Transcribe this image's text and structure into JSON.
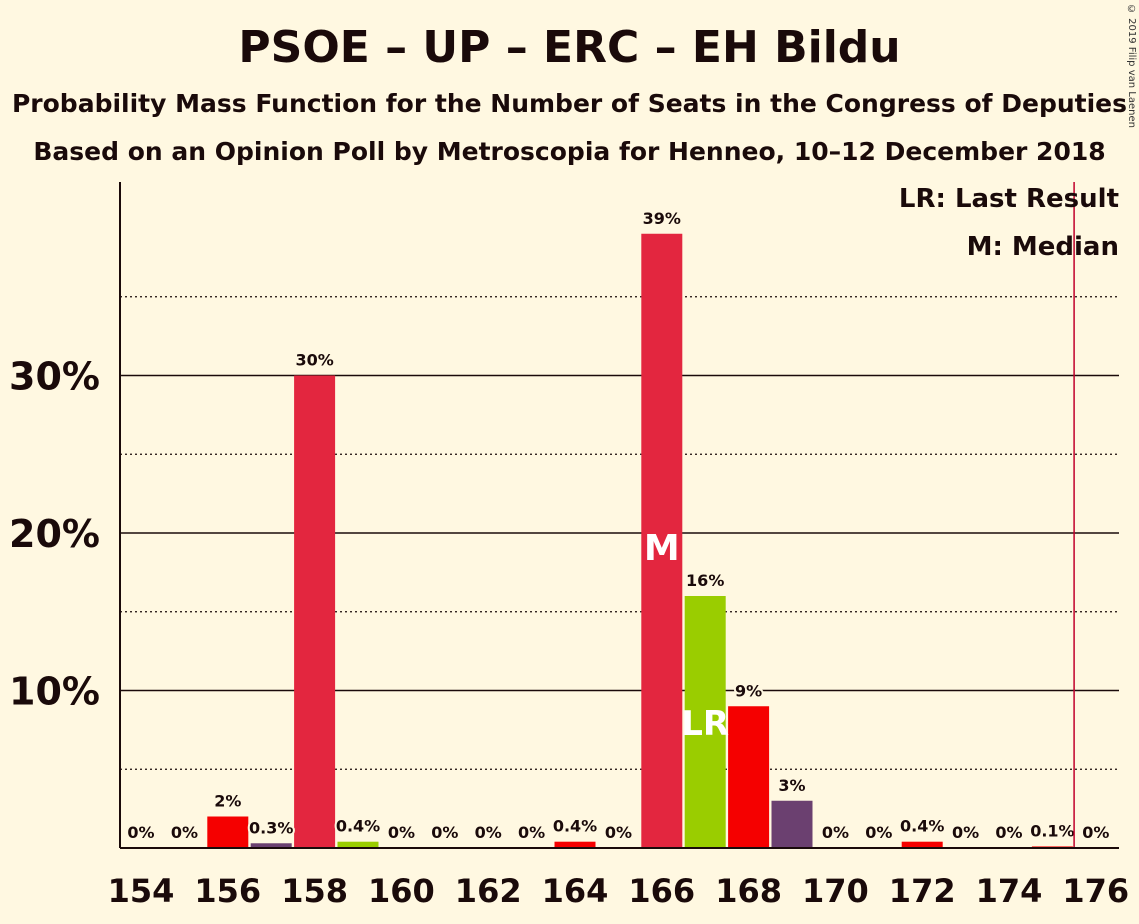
{
  "chart_data": {
    "type": "bar",
    "title": "PSOE – UP – ERC – EH Bildu",
    "subtitle": "Probability Mass Function for the Number of Seats in the Congress of Deputies",
    "subtitle2": "Based on an Opinion Poll by Metroscopia for Henneo, 10–12 December 2018",
    "copyright": "© 2019 Filip van Laenen",
    "legend": {
      "last_result": "LR: Last Result",
      "median": "M: Median",
      "placement": "top-right"
    },
    "x": [
      154,
      155,
      156,
      157,
      158,
      159,
      160,
      161,
      162,
      163,
      164,
      165,
      166,
      167,
      168,
      169,
      170,
      171,
      172,
      173,
      174,
      175,
      176
    ],
    "x_tick_labels": [
      "154",
      "156",
      "158",
      "160",
      "162",
      "164",
      "166",
      "168",
      "170",
      "172",
      "174",
      "176"
    ],
    "values": [
      0,
      0,
      2,
      0.3,
      30,
      0.4,
      0,
      0,
      0,
      0,
      0.4,
      0,
      39,
      16,
      9,
      3,
      0,
      0,
      0.4,
      0,
      0,
      0.1,
      0
    ],
    "labels": [
      "0%",
      "0%",
      "2%",
      "0.3%",
      "30%",
      "0.4%",
      "0%",
      "0%",
      "0%",
      "0%",
      "0.4%",
      "0%",
      "39%",
      "16%",
      "9%",
      "3%",
      "0%",
      "0%",
      "0.4%",
      "0%",
      "0%",
      "0.1%",
      "0%"
    ],
    "y_tick_labels": [
      "10%",
      "20%",
      "30%"
    ],
    "y_ticks": [
      10,
      20,
      30
    ],
    "y_minor_ticks": [
      5,
      15,
      25,
      35
    ],
    "ylim": [
      0,
      42
    ],
    "majority_line_x": 175.5,
    "median_x": 166,
    "median_mark": "M",
    "last_result_x": 167,
    "last_result_mark": "LR",
    "colors": {
      "background": "#FFF8E1",
      "psoe": "#E3263F",
      "erc": "#F50000",
      "up": "#6B4070",
      "bildu": "#9ACD00",
      "majority_line": "#C0002A",
      "text": "#1A0A0A"
    },
    "bar_colors": [
      "#E3263F",
      "#F50000",
      "#F50000",
      "#6B4070",
      "#E3263F",
      "#9ACD00",
      "#E3263F",
      "#E3263F",
      "#E3263F",
      "#E3263F",
      "#F50000",
      "#E3263F",
      "#E3263F",
      "#9ACD00",
      "#F50000",
      "#6B4070",
      "#E3263F",
      "#E3263F",
      "#F50000",
      "#E3263F",
      "#E3263F",
      "#F50000",
      "#E3263F"
    ]
  }
}
